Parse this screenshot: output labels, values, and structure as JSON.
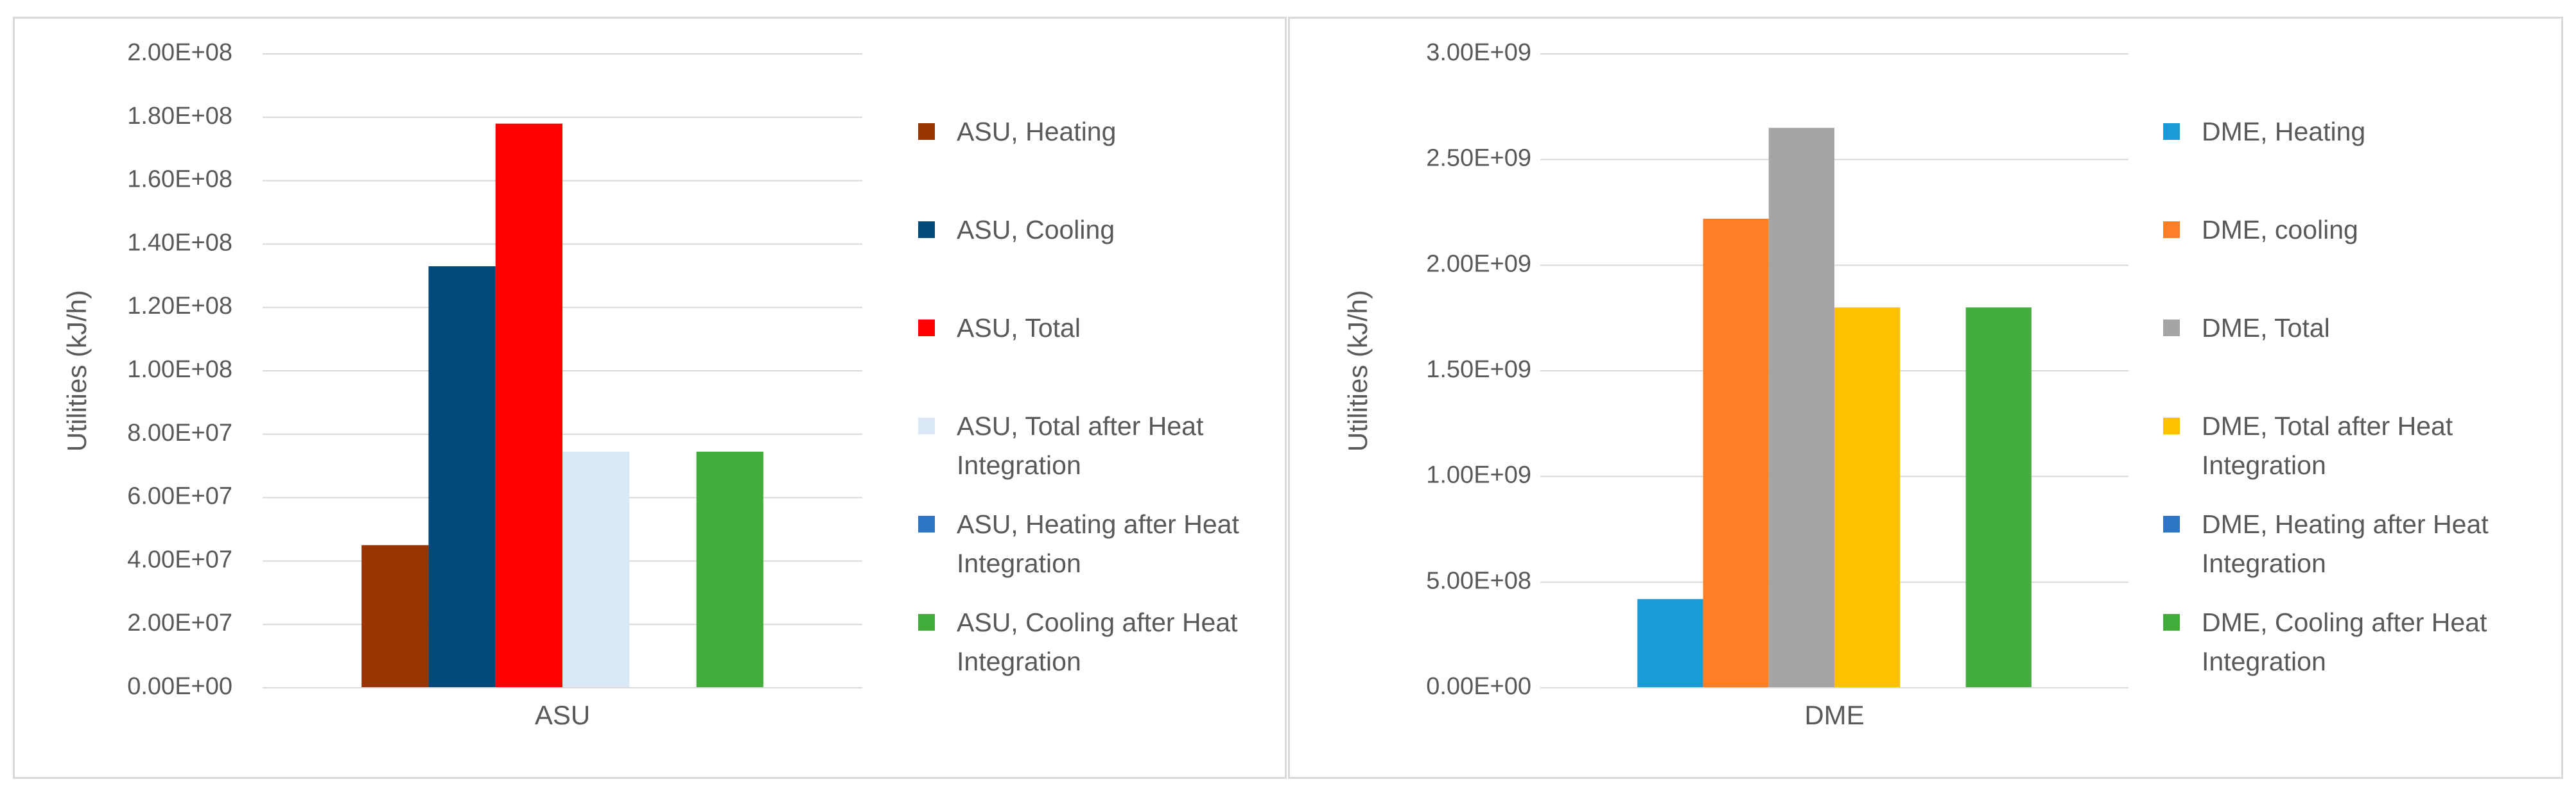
{
  "chart_data": [
    {
      "type": "bar",
      "y_label": "Utilities (kJ/h)",
      "categories": [
        "ASU"
      ],
      "series": [
        {
          "name": "ASU, Heating",
          "color": "#993300",
          "values": [
            45000000
          ]
        },
        {
          "name": "ASU, Cooling",
          "color": "#004a7a",
          "values": [
            133000000
          ]
        },
        {
          "name": "ASU, Total",
          "color": "#ff0000",
          "values": [
            178000000
          ]
        },
        {
          "name": "ASU, Total after Heat Integration",
          "color": "#dae8f6",
          "values": [
            74500000
          ]
        },
        {
          "name": "ASU, Heating after Heat Integration",
          "color": "#2e75c5",
          "values": [
            0
          ]
        },
        {
          "name": "ASU, Cooling after Heat Integration",
          "color": "#43ad3b",
          "values": [
            74500000
          ]
        }
      ],
      "ylim": [
        0,
        200000000
      ],
      "yticks": [
        {
          "value": 0,
          "label": "0.00E+00"
        },
        {
          "value": 20000000,
          "label": "2.00E+07"
        },
        {
          "value": 40000000,
          "label": "4.00E+07"
        },
        {
          "value": 60000000,
          "label": "6.00E+07"
        },
        {
          "value": 80000000,
          "label": "8.00E+07"
        },
        {
          "value": 100000000,
          "label": "1.00E+08"
        },
        {
          "value": 120000000,
          "label": "1.20E+08"
        },
        {
          "value": 140000000,
          "label": "1.40E+08"
        },
        {
          "value": 160000000,
          "label": "1.60E+08"
        },
        {
          "value": 180000000,
          "label": "1.80E+08"
        },
        {
          "value": 200000000,
          "label": "2.00E+08"
        }
      ],
      "grid": true,
      "legend": "right"
    },
    {
      "type": "bar",
      "y_label": "Utilities (kJ/h)",
      "categories": [
        "DME"
      ],
      "series": [
        {
          "name": "DME, Heating",
          "color": "#1a9bd7",
          "values": [
            420000000
          ]
        },
        {
          "name": "DME, cooling",
          "color": "#ff7f27",
          "values": [
            2220000000
          ]
        },
        {
          "name": "DME, Total",
          "color": "#a5a5a5",
          "values": [
            2650000000
          ]
        },
        {
          "name": "DME, Total after Heat Integration",
          "color": "#ffc000",
          "values": [
            1800000000
          ]
        },
        {
          "name": "DME, Heating after Heat Integration",
          "color": "#2e75c5",
          "values": [
            0
          ]
        },
        {
          "name": "DME, Cooling after Heat Integration",
          "color": "#43ad3b",
          "values": [
            1800000000
          ]
        }
      ],
      "ylim": [
        0,
        3000000000
      ],
      "yticks": [
        {
          "value": 0,
          "label": "0.00E+00"
        },
        {
          "value": 500000000,
          "label": "5.00E+08"
        },
        {
          "value": 1000000000,
          "label": "1.00E+09"
        },
        {
          "value": 1500000000,
          "label": "1.50E+09"
        },
        {
          "value": 2000000000,
          "label": "2.00E+09"
        },
        {
          "value": 2500000000,
          "label": "2.50E+09"
        },
        {
          "value": 3000000000,
          "label": "3.00E+09"
        }
      ],
      "grid": true,
      "legend": "right"
    }
  ]
}
